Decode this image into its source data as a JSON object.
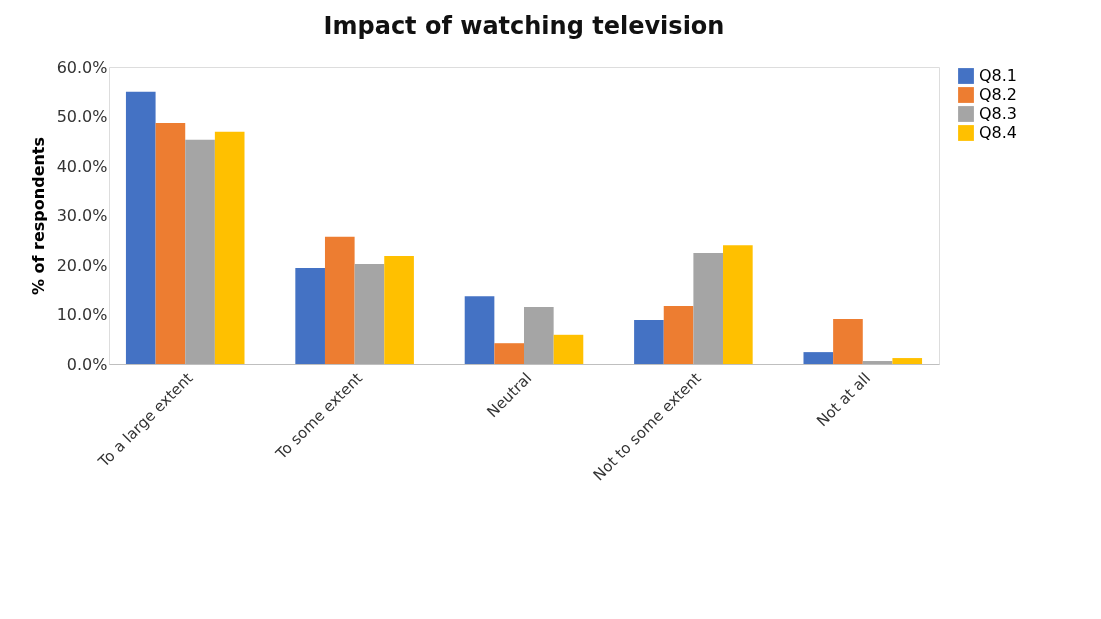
{
  "chart_data": {
    "type": "bar",
    "title": "Impact of watching television",
    "ylabel": "% of respondents",
    "categories": [
      "To a large extent",
      "To some extent",
      "Neutral",
      "Not to some extent",
      "Not at all"
    ],
    "series": [
      {
        "name": "Q8.1",
        "color": "#4472c4",
        "values": [
          55.0,
          19.4,
          13.7,
          8.9,
          2.4
        ]
      },
      {
        "name": "Q8.2",
        "color": "#ed7d31",
        "values": [
          48.7,
          25.7,
          4.2,
          11.7,
          9.1
        ]
      },
      {
        "name": "Q8.3",
        "color": "#a5a5a5",
        "values": [
          45.3,
          20.2,
          11.5,
          22.4,
          0.6
        ]
      },
      {
        "name": "Q8.4",
        "color": "#ffc000",
        "values": [
          46.9,
          21.8,
          5.9,
          24.0,
          1.2
        ]
      }
    ],
    "ylim": [
      0,
      60
    ],
    "yticks": [
      {
        "value": 0,
        "label": "0.0%"
      },
      {
        "value": 10,
        "label": "10.0%"
      },
      {
        "value": 20,
        "label": "20.0%"
      },
      {
        "value": 30,
        "label": "30.0%"
      },
      {
        "value": 40,
        "label": "40.0%"
      },
      {
        "value": 50,
        "label": "50.0%"
      },
      {
        "value": 60,
        "label": "60.0%"
      }
    ],
    "grid": false,
    "legend": "right"
  }
}
